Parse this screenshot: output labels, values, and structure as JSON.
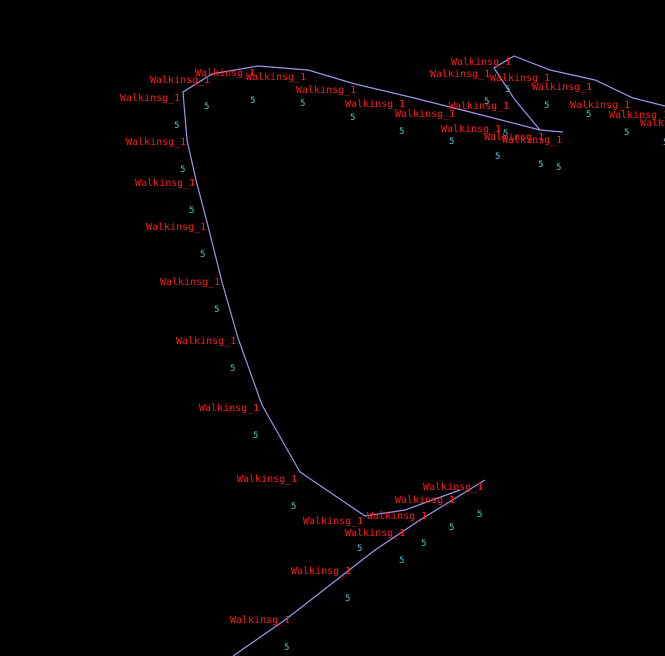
{
  "colors": {
    "background": "#000000",
    "path": "#9898e8",
    "label": "#ff1a1a",
    "value": "#48c8c8"
  },
  "paths": [
    {
      "name": "main-track"
    },
    {
      "name": "upper-right-track"
    },
    {
      "name": "lower-track"
    }
  ],
  "labels": [
    {
      "text": "Walkinsg_1",
      "value": "5"
    },
    {
      "text": "Walkinsg_1",
      "value": "5"
    },
    {
      "text": "Walkinsg_1",
      "value": "5"
    },
    {
      "text": "Walkinsg_1",
      "value": "5"
    },
    {
      "text": "Walkinsg_1",
      "value": "5"
    },
    {
      "text": "Walkinsg_1",
      "value": "5"
    },
    {
      "text": "Walkinsg_1",
      "value": "5"
    },
    {
      "text": "Walkinsg_1",
      "value": "5"
    },
    {
      "text": "Walkinsg_1",
      "value": "5"
    },
    {
      "text": "Walkinsg_1",
      "value": "5"
    },
    {
      "text": "Walkinsg_1",
      "value": "5"
    },
    {
      "text": "Walkinsg_1",
      "value": "5"
    },
    {
      "text": "Walkinsg_1",
      "value": "5"
    },
    {
      "text": "Walkinsg_1",
      "value": "5"
    },
    {
      "text": "Walkinsg_1",
      "value": "5"
    },
    {
      "text": "Walkinsg_1",
      "value": "5"
    },
    {
      "text": "Walkinsg_1",
      "value": "5"
    },
    {
      "text": "Walkinsg_1",
      "value": "5"
    },
    {
      "text": "Walkinsg_1",
      "value": "5"
    },
    {
      "text": "Walkinsg_1",
      "value": "5"
    },
    {
      "text": "Walkinsg_1",
      "value": "5"
    },
    {
      "text": "Walkinsg_1",
      "value": "5"
    },
    {
      "text": "Walkinsg_1",
      "value": "5"
    },
    {
      "text": "Walkinsg_1",
      "value": "5"
    },
    {
      "text": "Walkinsg_1",
      "value": "5"
    },
    {
      "text": "Walkinsg_1",
      "value": "5"
    },
    {
      "text": "Walkinsg_1",
      "value": "5"
    },
    {
      "text": "Walkinsg_1",
      "value": "5"
    },
    {
      "text": "Walkinsg_1",
      "value": "5"
    },
    {
      "text": "Walkinsg_1",
      "value": "5"
    },
    {
      "text": "Walkinsg_1",
      "value": "5"
    },
    {
      "text": "Walkinsg_1",
      "value": "5"
    }
  ]
}
